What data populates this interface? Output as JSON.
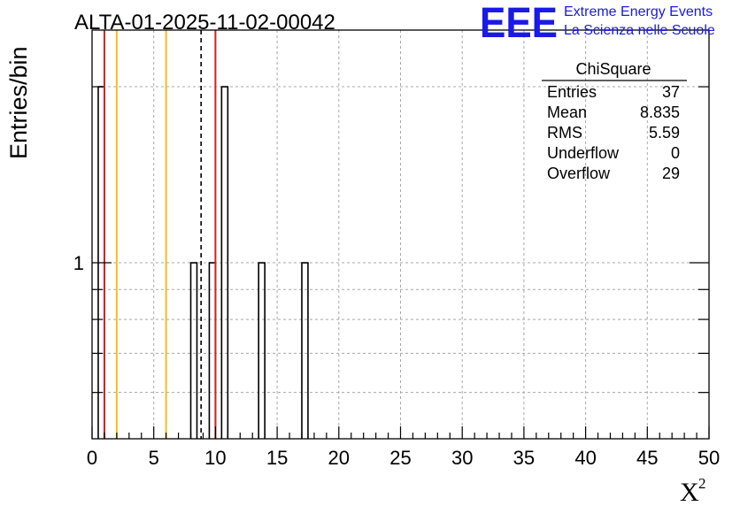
{
  "logo": {
    "mark": "EEE",
    "line1": "Extreme Energy Events",
    "line2": "La Scienza nelle Scuole",
    "color": "#1a1ae6"
  },
  "chart_data": {
    "type": "bar",
    "title": "ALTA-01-2025-11-02-00042",
    "xlabel": "X",
    "xlabel_sup": "2",
    "ylabel": "Entries/bin",
    "xlim": [
      0,
      50
    ],
    "ylim": [
      0.5,
      2.5
    ],
    "y_scale": "log",
    "grid": true,
    "bin_width": 0.5,
    "x_ticks": [
      "0",
      "5",
      "10",
      "15",
      "20",
      "25",
      "30",
      "35",
      "40",
      "45",
      "50"
    ],
    "y_tick_labels": [
      {
        "value": 1,
        "label": "1"
      }
    ],
    "bins": [
      {
        "x0": 0.5,
        "x1": 1.0,
        "value": 2
      },
      {
        "x0": 8.0,
        "x1": 8.5,
        "value": 1
      },
      {
        "x0": 9.5,
        "x1": 10.0,
        "value": 1
      },
      {
        "x0": 10.5,
        "x1": 11.0,
        "value": 2
      },
      {
        "x0": 13.5,
        "x1": 14.0,
        "value": 1
      },
      {
        "x0": 17.0,
        "x1": 17.5,
        "value": 1
      }
    ],
    "reference_lines": [
      {
        "x": 1.0,
        "color": "#d42020",
        "style": "solid"
      },
      {
        "x": 2.0,
        "color": "#f0c020",
        "style": "solid"
      },
      {
        "x": 6.0,
        "color": "#f0c020",
        "style": "solid"
      },
      {
        "x": 8.835,
        "color": "#000000",
        "style": "dashed"
      },
      {
        "x": 10.0,
        "color": "#d42020",
        "style": "solid"
      }
    ],
    "stats_box": {
      "title": "ChiSquare",
      "rows": [
        {
          "label": "Entries",
          "value": "37"
        },
        {
          "label": "Mean",
          "value": "8.835"
        },
        {
          "label": "RMS",
          "value": "5.59"
        },
        {
          "label": "Underflow",
          "value": "0"
        },
        {
          "label": "Overflow",
          "value": "29"
        }
      ]
    }
  }
}
